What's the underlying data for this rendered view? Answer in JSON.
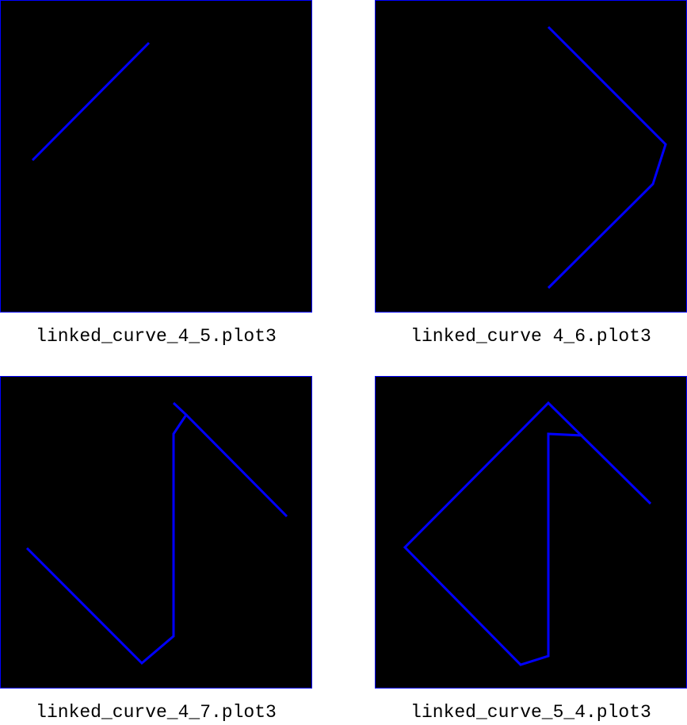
{
  "colors": {
    "background": "#000000",
    "curve": "#0000ff",
    "border": "#0000ff",
    "caption_text": "#000000"
  },
  "panels": [
    {
      "caption": "linked_curve_4_5.plot3",
      "curve": [
        [
          40,
          201
        ],
        [
          187,
          53
        ]
      ]
    },
    {
      "caption": "linked_curve 4_6.plot3",
      "curve": [
        [
          218,
          33
        ],
        [
          366,
          181
        ],
        [
          350,
          231
        ],
        [
          218,
          362
        ]
      ]
    },
    {
      "caption": "linked_curve_4_7.plot3",
      "curve": [
        [
          218,
          507
        ],
        [
          361,
          650
        ],
        [
          361,
          650
        ]
      ],
      "curve_segments": [
        [
          [
            33,
            690
          ],
          [
            178,
            835
          ],
          [
            218,
            801
          ],
          [
            218,
            546
          ],
          [
            234,
            522
          ],
          [
            218,
            507
          ]
        ],
        [
          [
            234,
            522
          ],
          [
            361,
            650
          ]
        ]
      ]
    },
    {
      "caption": "linked_curve_5_4.plot3",
      "curve_segments": [
        [
          [
            347,
            634
          ],
          [
            218,
            507
          ],
          [
            37,
            689
          ],
          [
            183,
            837
          ],
          [
            218,
            826
          ],
          [
            218,
            546
          ],
          [
            261,
            548
          ]
        ]
      ]
    }
  ]
}
